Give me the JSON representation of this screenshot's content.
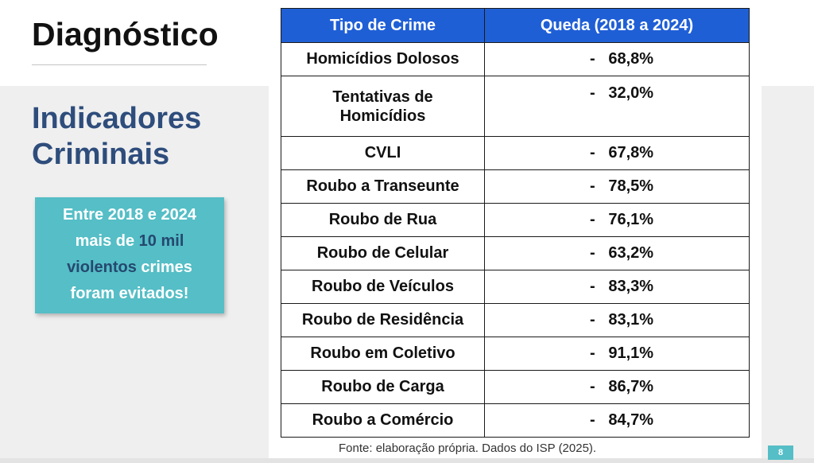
{
  "slide": {
    "title": "Diagnóstico",
    "subtitle_line1": "Indicadores",
    "subtitle_line2": "Criminais",
    "source": "Fonte: elaboração própria. Dados do ISP (2025).",
    "page_number": "8"
  },
  "callout": {
    "line1": "Entre 2018 e 2024",
    "line2_a": "mais de ",
    "line2_b": "10 mil",
    "line3_a": "violentos",
    "line3_b": " crimes",
    "line4": "foram evitados!"
  },
  "table": {
    "headers": [
      "Tipo de Crime",
      "Queda (2018 a 2024)"
    ],
    "rows": [
      {
        "crime": "Homicídios Dolosos",
        "drop": "-   68,8%"
      },
      {
        "crime": "Tentativas de",
        "crime_line2": "Homicídios",
        "drop": "-   32,0%"
      },
      {
        "crime": "CVLI",
        "drop": "-   67,8%"
      },
      {
        "crime": "Roubo a Transeunte",
        "drop": "-   78,5%"
      },
      {
        "crime": "Roubo de Rua",
        "drop": "-   76,1%"
      },
      {
        "crime": "Roubo de Celular",
        "drop": "-   63,2%"
      },
      {
        "crime": "Roubo de Veículos",
        "drop": "-   83,3%"
      },
      {
        "crime": "Roubo de Residência",
        "drop": "-   83,1%"
      },
      {
        "crime": "Roubo em Coletivo",
        "drop": "-   91,1%"
      },
      {
        "crime": "Roubo de Carga",
        "drop": "-   86,7%"
      },
      {
        "crime": "Roubo a Comércio",
        "drop": "-   84,7%"
      }
    ]
  },
  "colors": {
    "header_blue": "#1f5fd6",
    "title_navy": "#2e4d7c",
    "callout_teal": "#55bec6",
    "callout_highlight": "#25486f"
  }
}
